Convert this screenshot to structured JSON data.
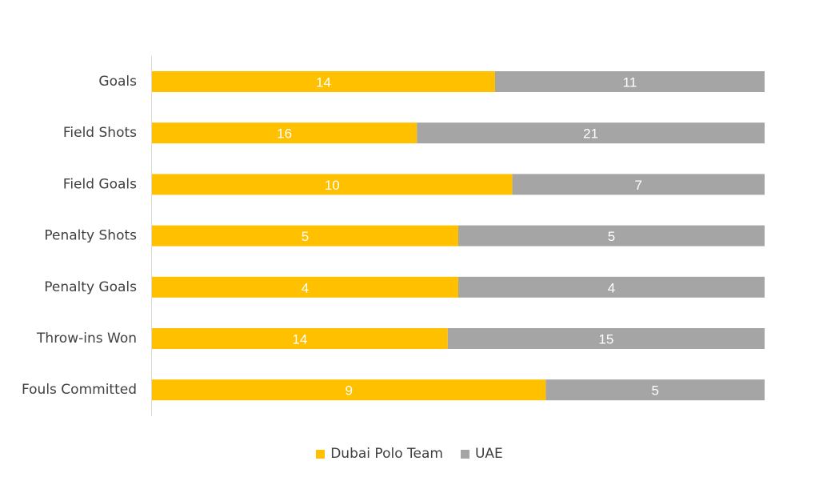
{
  "chart_data": {
    "type": "bar",
    "orientation": "horizontal",
    "stacked": "percent",
    "categories": [
      "Goals",
      "Field Shots",
      "Field Goals",
      "Penalty Shots",
      "Penalty Goals",
      "Throw-ins Won",
      "Fouls Committed"
    ],
    "series": [
      {
        "name": "Dubai Polo Team",
        "color": "#FFC000",
        "values": [
          14,
          16,
          10,
          5,
          4,
          14,
          9
        ]
      },
      {
        "name": "UAE",
        "color": "#A5A5A5",
        "values": [
          11,
          21,
          7,
          5,
          4,
          15,
          5
        ]
      }
    ],
    "title": "",
    "xlabel": "",
    "ylabel": "",
    "grid": false,
    "legend_position": "bottom",
    "data_labels": true
  }
}
